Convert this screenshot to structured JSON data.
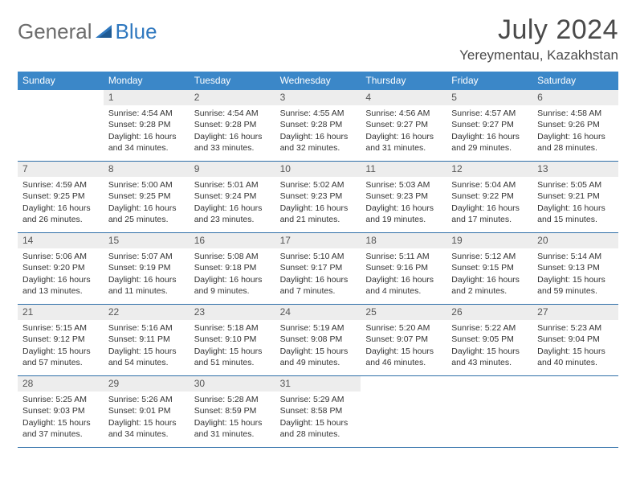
{
  "logo": {
    "text1": "General",
    "text2": "Blue"
  },
  "title": "July 2024",
  "location": "Yereymentau, Kazakhstan",
  "colors": {
    "header_bg": "#3b87c8",
    "header_text": "#ffffff",
    "daynum_bg": "#ededed",
    "border": "#2f6fa8",
    "logo_gray": "#6c6c6c",
    "logo_blue": "#2f78bf",
    "title_gray": "#4a4a4a"
  },
  "weekdays": [
    "Sunday",
    "Monday",
    "Tuesday",
    "Wednesday",
    "Thursday",
    "Friday",
    "Saturday"
  ],
  "weeks": [
    [
      {
        "empty": true
      },
      {
        "day": "1",
        "sunrise": "Sunrise: 4:54 AM",
        "sunset": "Sunset: 9:28 PM",
        "daylight1": "Daylight: 16 hours",
        "daylight2": "and 34 minutes."
      },
      {
        "day": "2",
        "sunrise": "Sunrise: 4:54 AM",
        "sunset": "Sunset: 9:28 PM",
        "daylight1": "Daylight: 16 hours",
        "daylight2": "and 33 minutes."
      },
      {
        "day": "3",
        "sunrise": "Sunrise: 4:55 AM",
        "sunset": "Sunset: 9:28 PM",
        "daylight1": "Daylight: 16 hours",
        "daylight2": "and 32 minutes."
      },
      {
        "day": "4",
        "sunrise": "Sunrise: 4:56 AM",
        "sunset": "Sunset: 9:27 PM",
        "daylight1": "Daylight: 16 hours",
        "daylight2": "and 31 minutes."
      },
      {
        "day": "5",
        "sunrise": "Sunrise: 4:57 AM",
        "sunset": "Sunset: 9:27 PM",
        "daylight1": "Daylight: 16 hours",
        "daylight2": "and 29 minutes."
      },
      {
        "day": "6",
        "sunrise": "Sunrise: 4:58 AM",
        "sunset": "Sunset: 9:26 PM",
        "daylight1": "Daylight: 16 hours",
        "daylight2": "and 28 minutes."
      }
    ],
    [
      {
        "day": "7",
        "sunrise": "Sunrise: 4:59 AM",
        "sunset": "Sunset: 9:25 PM",
        "daylight1": "Daylight: 16 hours",
        "daylight2": "and 26 minutes."
      },
      {
        "day": "8",
        "sunrise": "Sunrise: 5:00 AM",
        "sunset": "Sunset: 9:25 PM",
        "daylight1": "Daylight: 16 hours",
        "daylight2": "and 25 minutes."
      },
      {
        "day": "9",
        "sunrise": "Sunrise: 5:01 AM",
        "sunset": "Sunset: 9:24 PM",
        "daylight1": "Daylight: 16 hours",
        "daylight2": "and 23 minutes."
      },
      {
        "day": "10",
        "sunrise": "Sunrise: 5:02 AM",
        "sunset": "Sunset: 9:23 PM",
        "daylight1": "Daylight: 16 hours",
        "daylight2": "and 21 minutes."
      },
      {
        "day": "11",
        "sunrise": "Sunrise: 5:03 AM",
        "sunset": "Sunset: 9:23 PM",
        "daylight1": "Daylight: 16 hours",
        "daylight2": "and 19 minutes."
      },
      {
        "day": "12",
        "sunrise": "Sunrise: 5:04 AM",
        "sunset": "Sunset: 9:22 PM",
        "daylight1": "Daylight: 16 hours",
        "daylight2": "and 17 minutes."
      },
      {
        "day": "13",
        "sunrise": "Sunrise: 5:05 AM",
        "sunset": "Sunset: 9:21 PM",
        "daylight1": "Daylight: 16 hours",
        "daylight2": "and 15 minutes."
      }
    ],
    [
      {
        "day": "14",
        "sunrise": "Sunrise: 5:06 AM",
        "sunset": "Sunset: 9:20 PM",
        "daylight1": "Daylight: 16 hours",
        "daylight2": "and 13 minutes."
      },
      {
        "day": "15",
        "sunrise": "Sunrise: 5:07 AM",
        "sunset": "Sunset: 9:19 PM",
        "daylight1": "Daylight: 16 hours",
        "daylight2": "and 11 minutes."
      },
      {
        "day": "16",
        "sunrise": "Sunrise: 5:08 AM",
        "sunset": "Sunset: 9:18 PM",
        "daylight1": "Daylight: 16 hours",
        "daylight2": "and 9 minutes."
      },
      {
        "day": "17",
        "sunrise": "Sunrise: 5:10 AM",
        "sunset": "Sunset: 9:17 PM",
        "daylight1": "Daylight: 16 hours",
        "daylight2": "and 7 minutes."
      },
      {
        "day": "18",
        "sunrise": "Sunrise: 5:11 AM",
        "sunset": "Sunset: 9:16 PM",
        "daylight1": "Daylight: 16 hours",
        "daylight2": "and 4 minutes."
      },
      {
        "day": "19",
        "sunrise": "Sunrise: 5:12 AM",
        "sunset": "Sunset: 9:15 PM",
        "daylight1": "Daylight: 16 hours",
        "daylight2": "and 2 minutes."
      },
      {
        "day": "20",
        "sunrise": "Sunrise: 5:14 AM",
        "sunset": "Sunset: 9:13 PM",
        "daylight1": "Daylight: 15 hours",
        "daylight2": "and 59 minutes."
      }
    ],
    [
      {
        "day": "21",
        "sunrise": "Sunrise: 5:15 AM",
        "sunset": "Sunset: 9:12 PM",
        "daylight1": "Daylight: 15 hours",
        "daylight2": "and 57 minutes."
      },
      {
        "day": "22",
        "sunrise": "Sunrise: 5:16 AM",
        "sunset": "Sunset: 9:11 PM",
        "daylight1": "Daylight: 15 hours",
        "daylight2": "and 54 minutes."
      },
      {
        "day": "23",
        "sunrise": "Sunrise: 5:18 AM",
        "sunset": "Sunset: 9:10 PM",
        "daylight1": "Daylight: 15 hours",
        "daylight2": "and 51 minutes."
      },
      {
        "day": "24",
        "sunrise": "Sunrise: 5:19 AM",
        "sunset": "Sunset: 9:08 PM",
        "daylight1": "Daylight: 15 hours",
        "daylight2": "and 49 minutes."
      },
      {
        "day": "25",
        "sunrise": "Sunrise: 5:20 AM",
        "sunset": "Sunset: 9:07 PM",
        "daylight1": "Daylight: 15 hours",
        "daylight2": "and 46 minutes."
      },
      {
        "day": "26",
        "sunrise": "Sunrise: 5:22 AM",
        "sunset": "Sunset: 9:05 PM",
        "daylight1": "Daylight: 15 hours",
        "daylight2": "and 43 minutes."
      },
      {
        "day": "27",
        "sunrise": "Sunrise: 5:23 AM",
        "sunset": "Sunset: 9:04 PM",
        "daylight1": "Daylight: 15 hours",
        "daylight2": "and 40 minutes."
      }
    ],
    [
      {
        "day": "28",
        "sunrise": "Sunrise: 5:25 AM",
        "sunset": "Sunset: 9:03 PM",
        "daylight1": "Daylight: 15 hours",
        "daylight2": "and 37 minutes."
      },
      {
        "day": "29",
        "sunrise": "Sunrise: 5:26 AM",
        "sunset": "Sunset: 9:01 PM",
        "daylight1": "Daylight: 15 hours",
        "daylight2": "and 34 minutes."
      },
      {
        "day": "30",
        "sunrise": "Sunrise: 5:28 AM",
        "sunset": "Sunset: 8:59 PM",
        "daylight1": "Daylight: 15 hours",
        "daylight2": "and 31 minutes."
      },
      {
        "day": "31",
        "sunrise": "Sunrise: 5:29 AM",
        "sunset": "Sunset: 8:58 PM",
        "daylight1": "Daylight: 15 hours",
        "daylight2": "and 28 minutes."
      },
      {
        "empty": true
      },
      {
        "empty": true
      },
      {
        "empty": true
      }
    ]
  ]
}
